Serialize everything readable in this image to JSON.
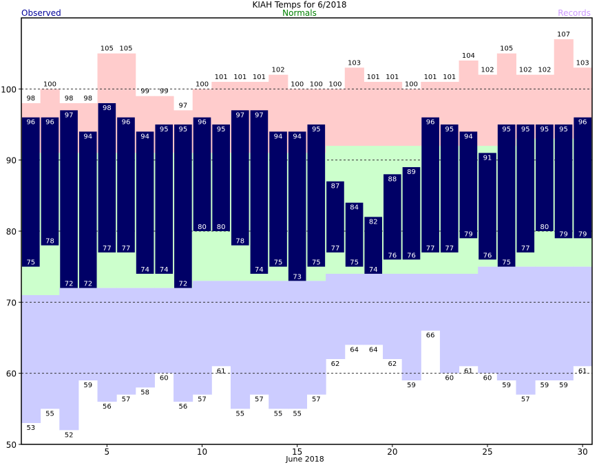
{
  "chart_data": {
    "type": "bar",
    "title": "KIAH Temps for 6/2018",
    "xlabel": "June 2018",
    "legend": {
      "observed": "Observed",
      "normals": "Normals",
      "records": "Records"
    },
    "days": [
      1,
      2,
      3,
      4,
      5,
      6,
      7,
      8,
      9,
      10,
      11,
      12,
      13,
      14,
      15,
      16,
      17,
      18,
      19,
      20,
      21,
      22,
      23,
      24,
      25,
      26,
      27,
      28,
      29,
      30
    ],
    "x_ticks": [
      5,
      10,
      15,
      20,
      25,
      30
    ],
    "y_ticks": [
      50,
      60,
      70,
      80,
      90,
      100
    ],
    "ylim": [
      50,
      110
    ],
    "grid": "dashed horizontal at 60, 70, 80, 90, 100",
    "series": [
      {
        "name": "Observed High",
        "values": [
          96,
          96,
          97,
          94,
          98,
          96,
          94,
          95,
          95,
          96,
          95,
          97,
          97,
          94,
          94,
          95,
          87,
          84,
          82,
          88,
          89,
          96,
          95,
          94,
          91,
          95,
          95,
          95,
          95,
          96
        ]
      },
      {
        "name": "Observed Low",
        "values": [
          75,
          78,
          72,
          72,
          77,
          77,
          74,
          74,
          72,
          80,
          80,
          78,
          74,
          75,
          73,
          75,
          77,
          75,
          74,
          76,
          76,
          77,
          77,
          79,
          76,
          75,
          77,
          80,
          79,
          79
        ]
      },
      {
        "name": "Normal High",
        "values": [
          91,
          91,
          91,
          91,
          91,
          91,
          91,
          91,
          91,
          91,
          91,
          91,
          91,
          91,
          91,
          91,
          92,
          92,
          92,
          92,
          92,
          92,
          92,
          92,
          92,
          92,
          93,
          93,
          93,
          93
        ]
      },
      {
        "name": "Normal Low",
        "values": [
          71,
          71,
          72,
          72,
          72,
          72,
          72,
          72,
          72,
          73,
          73,
          73,
          73,
          73,
          73,
          73,
          74,
          74,
          74,
          74,
          74,
          74,
          74,
          74,
          75,
          75,
          75,
          75,
          75,
          75
        ]
      },
      {
        "name": "Record High",
        "values": [
          98,
          100,
          98,
          98,
          105,
          105,
          99,
          99,
          97,
          100,
          101,
          101,
          101,
          102,
          100,
          100,
          100,
          103,
          101,
          101,
          100,
          101,
          101,
          104,
          102,
          105,
          102,
          102,
          107,
          103
        ]
      },
      {
        "name": "Record Low",
        "values": [
          53,
          55,
          52,
          59,
          56,
          57,
          58,
          60,
          56,
          57,
          61,
          55,
          57,
          55,
          55,
          57,
          62,
          64,
          64,
          62,
          59,
          66,
          60,
          61,
          60,
          59,
          57,
          59,
          59,
          61
        ]
      }
    ],
    "colors": {
      "observed": "#000066",
      "normal": "#ccffcc",
      "record_high": "#ffcccc",
      "record_low": "#ccccff",
      "observed_label": "#000099",
      "normals_label": "#008000",
      "records_label": "#cc99ff"
    }
  }
}
